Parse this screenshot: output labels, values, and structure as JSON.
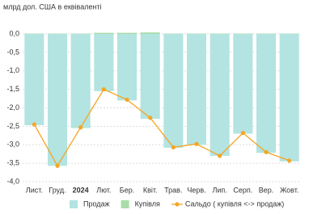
{
  "chart_data": {
    "type": "bar",
    "y_axis_label": "млрд дол. США в еквіваленті",
    "categories": [
      "Лист.",
      "Груд.",
      "2024",
      "Лют.",
      "Бер.",
      "Квіт.",
      "Трав.",
      "Черв.",
      "Лип.",
      "Серп.",
      "Вер.",
      "Жовт."
    ],
    "bold_category_index": 2,
    "series": [
      {
        "name": "Продаж",
        "type": "bar",
        "color": "#b3e4e1",
        "values": [
          -2.47,
          -3.57,
          -2.55,
          -1.55,
          -1.8,
          -2.3,
          -3.08,
          -3.0,
          -3.3,
          -2.7,
          -3.22,
          -3.45
        ]
      },
      {
        "name": "Купівля",
        "type": "bar",
        "color": "#a9dca9",
        "values": [
          0.01,
          0.01,
          0.01,
          0.03,
          0.03,
          0.04,
          0.01,
          0.01,
          0.01,
          0.01,
          0.01,
          0.01
        ]
      },
      {
        "name": "Сальдо ( купівля <-> продаж)",
        "type": "line",
        "color": "#f5a623",
        "values": [
          -2.45,
          -3.57,
          -2.53,
          -1.5,
          -1.78,
          -2.27,
          -3.07,
          -2.98,
          -3.3,
          -2.68,
          -3.2,
          -3.43
        ]
      }
    ],
    "ylim": [
      -4,
      0
    ],
    "yticks": [
      {
        "value": 0,
        "label": "0,0"
      },
      {
        "value": -0.5,
        "label": "-0,5"
      },
      {
        "value": -1,
        "label": "-1,0"
      },
      {
        "value": -1.5,
        "label": "-1,5"
      },
      {
        "value": -2,
        "label": "-2,0"
      },
      {
        "value": -2.5,
        "label": "-2,5"
      },
      {
        "value": -3,
        "label": "-3,0"
      },
      {
        "value": -3.5,
        "label": "-3,5"
      },
      {
        "value": -4,
        "label": "-4,0"
      }
    ],
    "grid": true
  }
}
